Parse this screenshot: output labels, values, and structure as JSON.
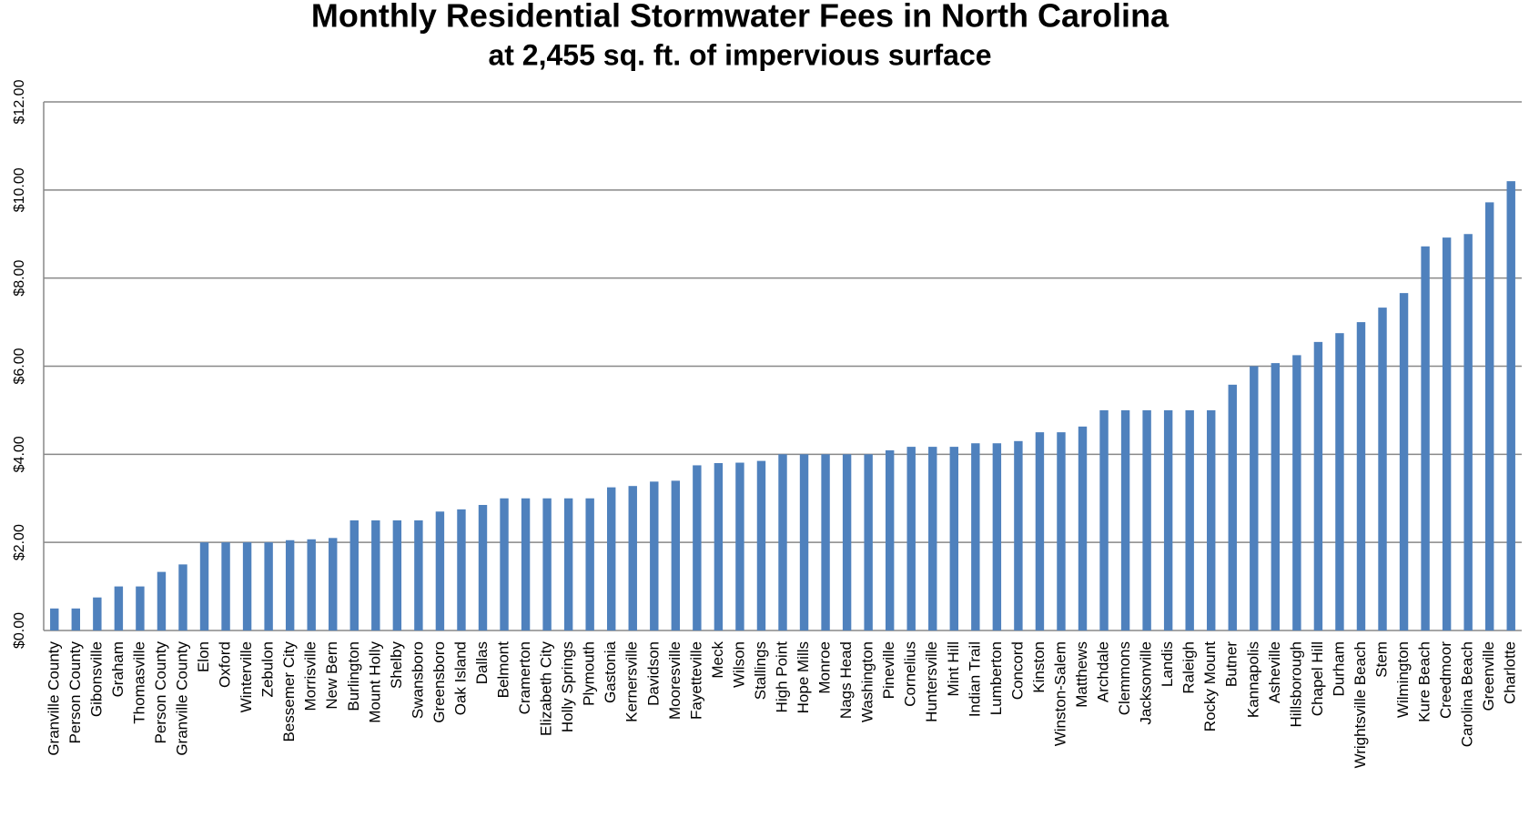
{
  "chart_data": {
    "type": "bar",
    "title": "Monthly Residential Stormwater Fees in North Carolina",
    "subtitle": "at 2,455 sq. ft. of impervious surface",
    "categories": [
      "Granville County",
      "Person County",
      "Gibonsville",
      "Graham",
      "Thomasville",
      "Person County",
      "Granville County",
      "Elon",
      "Oxford",
      "Winterville",
      "Zebulon",
      "Bessemer City",
      "Morrisville",
      "New Bern",
      "Burlington",
      "Mount Holly",
      "Shelby",
      "Swansboro",
      "Greensboro",
      "Oak Island",
      "Dallas",
      "Belmont",
      "Cramerton",
      "Elizabeth City",
      "Holly Springs",
      "Plymouth",
      "Gastonia",
      "Kernersville",
      "Davidson",
      "Mooresville",
      "Fayetteville",
      "Meck",
      "Wilson",
      "Stallings",
      "High Point",
      "Hope Mills",
      "Monroe",
      "Nags Head",
      "Washington",
      "Pineville",
      "Cornelius",
      "Huntersville",
      "Mint Hill",
      "Indian Trail",
      "Lumberton",
      "Concord",
      "Kinston",
      "Winston-Salem",
      "Matthews",
      "Archdale",
      "Clemmons",
      "Jacksonville",
      "Landis",
      "Raleigh",
      "Rocky Mount",
      "Butner",
      "Kannapolis",
      "Asheville",
      "Hillsborough",
      "Chapel Hill",
      "Durham",
      "Wrightsville Beach",
      "Stem",
      "Wilmington",
      "Kure Beach",
      "Creedmoor",
      "Carolina Beach",
      "Greenville",
      "Charlotte"
    ],
    "values": [
      0.5,
      0.5,
      0.75,
      1.0,
      1.0,
      1.33,
      1.5,
      2.0,
      2.0,
      2.0,
      2.0,
      2.05,
      2.07,
      2.1,
      2.5,
      2.5,
      2.5,
      2.5,
      2.7,
      2.75,
      2.85,
      3.0,
      3.0,
      3.0,
      3.0,
      3.0,
      3.25,
      3.28,
      3.38,
      3.4,
      3.75,
      3.8,
      3.81,
      3.85,
      4.0,
      4.0,
      4.0,
      4.0,
      4.0,
      4.09,
      4.17,
      4.17,
      4.17,
      4.25,
      4.25,
      4.3,
      4.5,
      4.5,
      4.63,
      5.0,
      5.0,
      5.0,
      5.0,
      5.0,
      5.0,
      5.58,
      6.0,
      6.07,
      6.25,
      6.55,
      6.75,
      7.0,
      7.33,
      7.66,
      8.72,
      8.92,
      9.0,
      9.72,
      10.2
    ],
    "color": "#4f81bd",
    "ylim": [
      0,
      12
    ],
    "yticks": [
      {
        "value": 0,
        "label": "$0.00"
      },
      {
        "value": 2,
        "label": "$2.00"
      },
      {
        "value": 4,
        "label": "$4.00"
      },
      {
        "value": 6,
        "label": "$6.00"
      },
      {
        "value": 8,
        "label": "$8.00"
      },
      {
        "value": 10,
        "label": "$10.00"
      },
      {
        "value": 12,
        "label": "$12.00"
      }
    ],
    "grid": true
  }
}
